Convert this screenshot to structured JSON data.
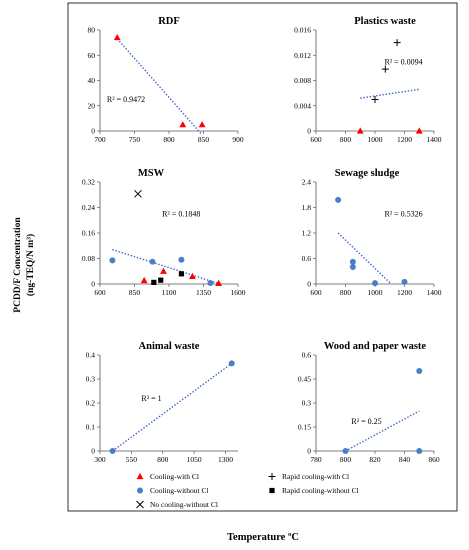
{
  "figure": {
    "ylabel_line1": "PCDD/F Concentration",
    "ylabel_line2": "(ng-TEQ/N m³)",
    "xlabel": "Temperature ºC"
  },
  "colors": {
    "red": "#ff0000",
    "blue": "#4a7fc8",
    "black": "#000000",
    "trend": "#3a63c2"
  },
  "legend": [
    {
      "label": "Cooling-with Cl",
      "marker": "triangle",
      "color": "#ff0000"
    },
    {
      "label": "Rapid cooling-with Cl",
      "marker": "plus",
      "color": "#000000"
    },
    {
      "label": "Cooling-without Cl",
      "marker": "circle",
      "color": "#4a7fc8"
    },
    {
      "label": "Rapid cooling-without Cl",
      "marker": "square",
      "color": "#000000"
    },
    {
      "label": "No cooling-without Cl",
      "marker": "cross",
      "color": "#000000"
    }
  ],
  "chart_data": [
    {
      "type": "scatter",
      "title": "RDF",
      "xlim": [
        700,
        900
      ],
      "ylim": [
        0,
        80
      ],
      "xticks": [
        700,
        750,
        800,
        850,
        900
      ],
      "yticks": [
        0,
        20,
        40,
        60,
        80
      ],
      "annotation": "R² = 0.9472",
      "series": [
        {
          "marker": "triangle",
          "color": "#ff0000",
          "points": [
            [
              725,
              74
            ],
            [
              820,
              5
            ],
            [
              848,
              5
            ]
          ]
        }
      ],
      "trend": [
        [
          725,
          73
        ],
        [
          848,
          -3
        ]
      ]
    },
    {
      "type": "scatter",
      "title": "Plastics waste",
      "xlim": [
        600,
        1400
      ],
      "ylim": [
        0,
        0.016
      ],
      "xticks": [
        600,
        800,
        1000,
        1200,
        1400
      ],
      "yticks": [
        "0",
        "0.004",
        "0.008",
        "0.012",
        "0.016"
      ],
      "annotation": "R² = 0.0094",
      "series": [
        {
          "marker": "triangle",
          "color": "#ff0000",
          "points": [
            [
              900,
              0
            ],
            [
              1300,
              0
            ]
          ]
        },
        {
          "marker": "plus",
          "color": "#000000",
          "points": [
            [
              1000,
              0.005
            ],
            [
              1070,
              0.0098
            ],
            [
              1150,
              0.014
            ]
          ]
        }
      ],
      "trend": [
        [
          900,
          0.0052
        ],
        [
          1300,
          0.0066
        ]
      ]
    },
    {
      "type": "scatter",
      "title": "MSW",
      "xlim": [
        600,
        1600
      ],
      "ylim": [
        0,
        0.32
      ],
      "xticks": [
        600,
        850,
        1100,
        1350,
        1600
      ],
      "yticks": [
        "0",
        "0.08",
        "0.16",
        "0.24",
        "0.32"
      ],
      "annotation": "R² = 0.1848",
      "series": [
        {
          "marker": "circle",
          "color": "#4a7fc8",
          "points": [
            [
              690,
              0.074
            ],
            [
              980,
              0.07
            ],
            [
              1190,
              0.076
            ],
            [
              1400,
              0.003
            ]
          ]
        },
        {
          "marker": "triangle",
          "color": "#ff0000",
          "points": [
            [
              920,
              0.011
            ],
            [
              1060,
              0.04
            ],
            [
              1270,
              0.024
            ],
            [
              1460,
              0.002
            ]
          ]
        },
        {
          "marker": "square",
          "color": "#000000",
          "points": [
            [
              990,
              0.005
            ],
            [
              1040,
              0.012
            ],
            [
              1190,
              0.032
            ]
          ]
        },
        {
          "marker": "cross",
          "color": "#000000",
          "points": [
            [
              875,
              0.283
            ]
          ]
        }
      ],
      "trend": [
        [
          690,
          0.108
        ],
        [
          1470,
          0.0
        ]
      ]
    },
    {
      "type": "scatter",
      "title": "Sewage sludge",
      "xlim": [
        600,
        1400
      ],
      "ylim": [
        0,
        2.4
      ],
      "xticks": [
        600,
        800,
        1000,
        1200,
        1400
      ],
      "yticks": [
        "0",
        "0.6",
        "1.2",
        "1.8",
        "2.4"
      ],
      "annotation": "R² = 0.5326",
      "series": [
        {
          "marker": "circle",
          "color": "#4a7fc8",
          "points": [
            [
              750,
              1.98
            ],
            [
              850,
              0.52
            ],
            [
              850,
              0.4
            ],
            [
              1000,
              0.02
            ],
            [
              1200,
              0.05
            ]
          ]
        }
      ],
      "trend": [
        [
          750,
          1.2
        ],
        [
          1110,
          0.0
        ]
      ]
    },
    {
      "type": "scatter",
      "title": "Animal waste",
      "xlim": [
        300,
        1400
      ],
      "ylim": [
        0,
        0.4
      ],
      "xticks": [
        300,
        550,
        800,
        1050,
        1300
      ],
      "yticks": [
        "0",
        "0.1",
        "0.2",
        "0.3",
        "0.4"
      ],
      "annotation": "R² = 1",
      "series": [
        {
          "marker": "circle",
          "color": "#4a7fc8",
          "points": [
            [
              400,
              0
            ],
            [
              1350,
              0.365
            ]
          ]
        }
      ],
      "trend": [
        [
          400,
          0
        ],
        [
          1350,
          0.365
        ]
      ]
    },
    {
      "type": "scatter",
      "title": "Wood and paper waste",
      "xlim": [
        780,
        860
      ],
      "ylim": [
        0,
        0.6
      ],
      "xticks": [
        780,
        800,
        820,
        840,
        860
      ],
      "yticks": [
        "0",
        "0.15",
        "0.3",
        "0.45",
        "0.6"
      ],
      "annotation": "R² = 0.25",
      "series": [
        {
          "marker": "circle",
          "color": "#4a7fc8",
          "points": [
            [
              800,
              0
            ],
            [
              850,
              0.5
            ],
            [
              850,
              0
            ]
          ]
        }
      ],
      "trend": [
        [
          800,
          0
        ],
        [
          850,
          0.25
        ]
      ]
    }
  ]
}
